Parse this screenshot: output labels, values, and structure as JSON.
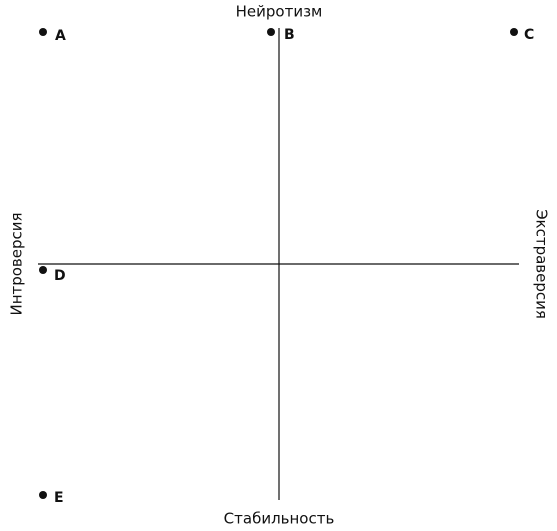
{
  "axes": {
    "top": "Нейротизм",
    "bottom": "Стабильность",
    "left": "Интроверсия",
    "right": "Экстраверсия"
  },
  "points": [
    {
      "label": "A"
    },
    {
      "label": "B"
    },
    {
      "label": "C"
    },
    {
      "label": "D"
    },
    {
      "label": "E"
    }
  ]
}
